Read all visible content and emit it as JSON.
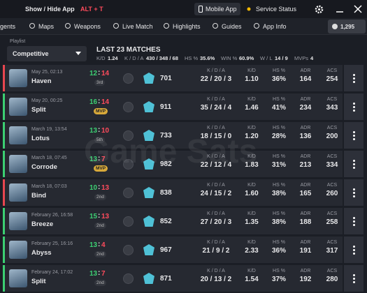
{
  "topbar": {
    "toggle_label": "Show / Hide App",
    "shortcut": "ALT + T",
    "mobile_app": "Mobile App",
    "service_status": "Service Status"
  },
  "nav": [
    "Agents",
    "Maps",
    "Weapons",
    "Live Match",
    "Highlights",
    "Guides",
    "App Info"
  ],
  "currency": "1,295",
  "playlist": {
    "label": "Playlist",
    "value": "Competitive"
  },
  "summary": {
    "title": "LAST 23 MATCHES",
    "stats": [
      {
        "label": "K/D",
        "value": "1.24"
      },
      {
        "label": "K / D / A",
        "value": "430 / 348 / 68"
      },
      {
        "label": "HS %",
        "value": "35.6%"
      },
      {
        "label": "WIN %",
        "value": "60.9%"
      },
      {
        "label": "W / L",
        "value": "14 / 9"
      },
      {
        "label": "MVPs",
        "value": "4"
      }
    ]
  },
  "column_labels": {
    "kda": "K / D / A",
    "kd": "K/D",
    "hs": "HS %",
    "adr": "ADR",
    "acs": "ACS"
  },
  "watermark": "Game Sats",
  "matches": [
    {
      "date": "May 25, 02:13",
      "map": "Haven",
      "result": "loss",
      "score": [
        12,
        14
      ],
      "placement": "3rd",
      "rating": 701,
      "kda": "22 / 20 / 3",
      "kd": "1.10",
      "hs": "36%",
      "adr": 164,
      "acs": 254
    },
    {
      "date": "May 20, 00:25",
      "map": "Split",
      "result": "win",
      "score": [
        16,
        14
      ],
      "placement": "MVP",
      "rating": 911,
      "kda": "35 / 24 / 4",
      "kd": "1.46",
      "hs": "41%",
      "adr": 234,
      "acs": 343
    },
    {
      "date": "March 19, 13:54",
      "map": "Lotus",
      "result": "win",
      "score": [
        13,
        10
      ],
      "placement": "5th",
      "rating": 733,
      "kda": "18 / 15 / 0",
      "kd": "1.20",
      "hs": "28%",
      "adr": 136,
      "acs": 200
    },
    {
      "date": "March 18, 07:45",
      "map": "Corrode",
      "result": "win",
      "score": [
        13,
        7
      ],
      "placement": "MVP",
      "rating": 982,
      "kda": "22 / 12 / 4",
      "kd": "1.83",
      "hs": "31%",
      "adr": 213,
      "acs": 334
    },
    {
      "date": "March 18, 07:03",
      "map": "Bind",
      "result": "loss",
      "score": [
        10,
        13
      ],
      "placement": "2nd",
      "rating": 838,
      "kda": "24 / 15 / 2",
      "kd": "1.60",
      "hs": "38%",
      "adr": 165,
      "acs": 260
    },
    {
      "date": "February 26, 16:58",
      "map": "Breeze",
      "result": "win",
      "score": [
        15,
        13
      ],
      "placement": "2nd",
      "rating": 852,
      "kda": "27 / 20 / 3",
      "kd": "1.35",
      "hs": "38%",
      "adr": 188,
      "acs": 258
    },
    {
      "date": "February 25, 16:16",
      "map": "Abyss",
      "result": "win",
      "score": [
        13,
        4
      ],
      "placement": "2nd",
      "rating": 967,
      "kda": "21 / 9 / 2",
      "kd": "2.33",
      "hs": "36%",
      "adr": 191,
      "acs": 317
    },
    {
      "date": "February 24, 17:02",
      "map": "Split",
      "result": "win",
      "score": [
        13,
        7
      ],
      "placement": "2nd",
      "rating": 871,
      "kda": "20 / 13 / 2",
      "kd": "1.54",
      "hs": "37%",
      "adr": 192,
      "acs": 280
    }
  ]
}
